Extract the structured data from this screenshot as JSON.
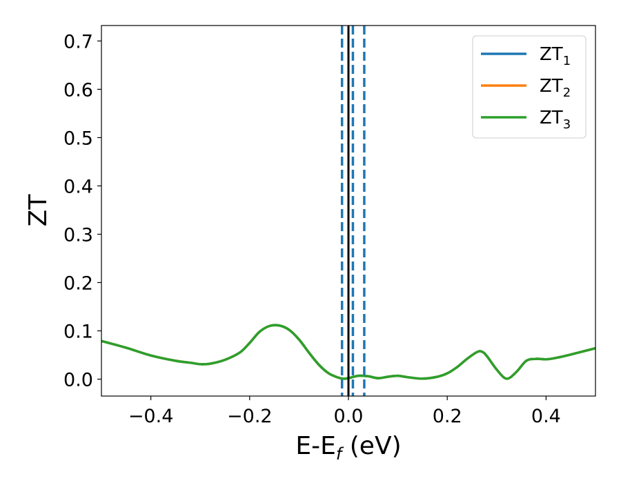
{
  "chart_data": {
    "type": "line",
    "xlabel": {
      "main": "E-E",
      "sub": "f",
      "tail": " (eV)"
    },
    "ylabel": "ZT",
    "xlim": [
      -0.5,
      0.5
    ],
    "ylim": [
      -0.035,
      0.732
    ],
    "xticks": [
      {
        "value": -0.4,
        "label": "−0.4"
      },
      {
        "value": -0.2,
        "label": "−0.2"
      },
      {
        "value": 0.0,
        "label": "0.0"
      },
      {
        "value": 0.2,
        "label": "0.2"
      },
      {
        "value": 0.4,
        "label": "0.4"
      }
    ],
    "yticks": [
      {
        "value": 0.0,
        "label": "0.0"
      },
      {
        "value": 0.1,
        "label": "0.1"
      },
      {
        "value": 0.2,
        "label": "0.2"
      },
      {
        "value": 0.3,
        "label": "0.3"
      },
      {
        "value": 0.4,
        "label": "0.4"
      },
      {
        "value": 0.5,
        "label": "0.5"
      },
      {
        "value": 0.6,
        "label": "0.6"
      },
      {
        "value": 0.7,
        "label": "0.7"
      }
    ],
    "grid": false,
    "legend_position": "top-right",
    "vlines": [
      {
        "x": 0.0,
        "style": "solid",
        "color": "#000000"
      },
      {
        "x": -0.013,
        "style": "dashed",
        "color": "#1f77b4"
      },
      {
        "x": 0.009,
        "style": "dashed",
        "color": "#1f77b4"
      },
      {
        "x": 0.032,
        "style": "dashed",
        "color": "#1f77b4"
      }
    ],
    "x": [
      -0.5,
      -0.45,
      -0.4,
      -0.35,
      -0.32,
      -0.3,
      -0.28,
      -0.25,
      -0.22,
      -0.2,
      -0.18,
      -0.16,
      -0.14,
      -0.12,
      -0.1,
      -0.08,
      -0.06,
      -0.04,
      -0.02,
      -0.01,
      0.0,
      0.02,
      0.04,
      0.06,
      0.08,
      0.1,
      0.12,
      0.15,
      0.18,
      0.2,
      0.22,
      0.24,
      0.26,
      0.27,
      0.28,
      0.3,
      0.32,
      0.34,
      0.36,
      0.38,
      0.4,
      0.42,
      0.45,
      0.5
    ],
    "series": [
      {
        "name": "ZT",
        "sub": "1",
        "color": "#1f77b4",
        "values": [
          0.079,
          0.065,
          0.049,
          0.038,
          0.034,
          0.031,
          0.032,
          0.04,
          0.055,
          0.075,
          0.098,
          0.11,
          0.111,
          0.102,
          0.082,
          0.055,
          0.03,
          0.012,
          0.003,
          0.001,
          0.002,
          0.007,
          0.006,
          0.002,
          0.005,
          0.007,
          0.004,
          0.001,
          0.005,
          0.012,
          0.025,
          0.042,
          0.056,
          0.057,
          0.048,
          0.02,
          0.001,
          0.015,
          0.038,
          0.042,
          0.041,
          0.044,
          0.051,
          0.064
        ]
      },
      {
        "name": "ZT",
        "sub": "2",
        "color": "#ff7f0e",
        "values": [
          0.079,
          0.065,
          0.049,
          0.038,
          0.034,
          0.031,
          0.032,
          0.04,
          0.055,
          0.075,
          0.098,
          0.11,
          0.111,
          0.102,
          0.082,
          0.055,
          0.03,
          0.012,
          0.003,
          0.001,
          0.002,
          0.007,
          0.006,
          0.002,
          0.005,
          0.007,
          0.004,
          0.001,
          0.005,
          0.012,
          0.025,
          0.042,
          0.056,
          0.057,
          0.048,
          0.02,
          0.001,
          0.015,
          0.038,
          0.042,
          0.041,
          0.044,
          0.051,
          0.064
        ]
      },
      {
        "name": "ZT",
        "sub": "3",
        "color": "#2ca02c",
        "values": [
          0.079,
          0.065,
          0.049,
          0.038,
          0.034,
          0.031,
          0.032,
          0.04,
          0.055,
          0.075,
          0.098,
          0.11,
          0.111,
          0.102,
          0.082,
          0.055,
          0.03,
          0.012,
          0.003,
          0.001,
          0.002,
          0.007,
          0.006,
          0.002,
          0.005,
          0.007,
          0.004,
          0.001,
          0.005,
          0.012,
          0.025,
          0.042,
          0.056,
          0.057,
          0.048,
          0.02,
          0.001,
          0.015,
          0.038,
          0.042,
          0.041,
          0.044,
          0.051,
          0.064
        ]
      }
    ]
  }
}
